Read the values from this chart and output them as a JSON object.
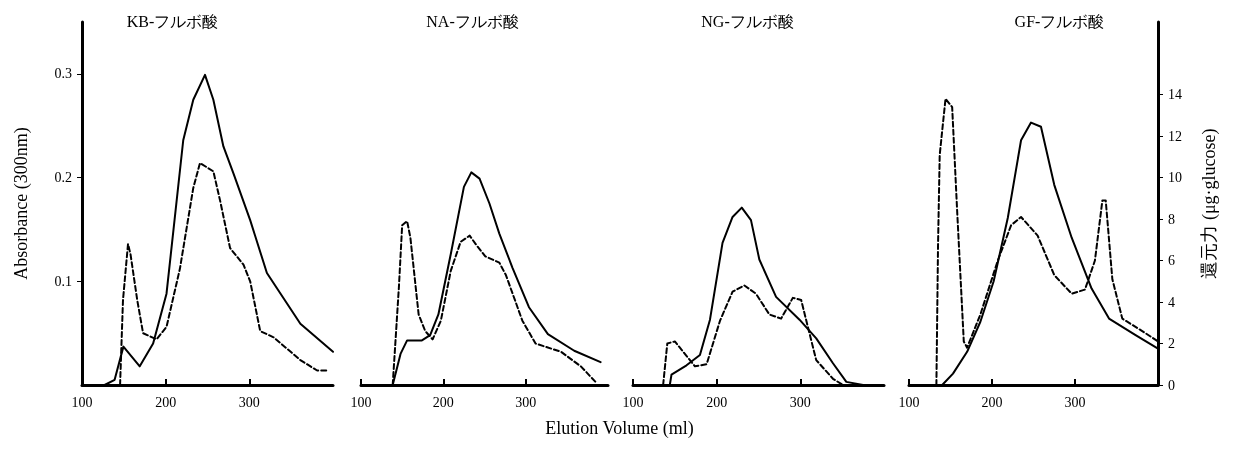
{
  "chart_data": [
    {
      "type": "line",
      "title": "KB-フルボ酸",
      "ylabel": "Absorbance (300nm)",
      "xlim": [
        100,
        400
      ],
      "xticks": [
        100,
        200,
        300
      ],
      "ylim": [
        0,
        0.35
      ],
      "yticks": [
        0.1,
        0.2,
        0.3
      ],
      "y2lim": [
        0,
        17.5
      ],
      "marker": "none",
      "series": [
        {
          "color": "#000000",
          "line_style": "solid",
          "x": [
            100,
            127,
            139,
            149.5,
            169,
            185,
            201,
            221,
            233,
            247,
            257,
            269,
            281,
            301,
            321,
            361,
            400
          ],
          "values": [
            0,
            0,
            0.005,
            0.037,
            0.018,
            0.04,
            0.088,
            0.236,
            0.275,
            0.299,
            0.275,
            0.23,
            0.204,
            0.159,
            0.108,
            0.059,
            0.032
          ]
        },
        {
          "color": "#000000",
          "line_style": "dashed",
          "axis": "y2",
          "x": [
            145.5,
            149,
            155,
            158,
            166,
            173,
            189,
            201,
            217,
            233,
            241,
            257,
            265,
            277,
            293,
            301,
            313,
            329,
            361,
            381,
            395
          ],
          "values": [
            0,
            4.1,
            6.8,
            6.3,
            4.1,
            2.5,
            2.2,
            2.8,
            5.6,
            9.5,
            10.7,
            10.3,
            8.9,
            6.6,
            5.8,
            5.0,
            2.6,
            2.3,
            1.2,
            0.7,
            0.7
          ]
        }
      ]
    },
    {
      "type": "line",
      "title": "NA-フルボ酸",
      "xlabel": "Elution Volume (ml)",
      "xlim": [
        100,
        400
      ],
      "xticks": [
        100,
        200,
        300
      ],
      "ylim": [
        0,
        0.3
      ],
      "yticks": [
        0.1,
        0.2,
        0.3
      ],
      "y2lim": [
        0,
        14
      ],
      "y2ticks": [
        0,
        2,
        4,
        6,
        8,
        10,
        12,
        14
      ],
      "tick_labels": "x",
      "marker": "none",
      "series": [
        {
          "color": "#000000",
          "line_style": "solid",
          "x": [
            138.5,
            148,
            156,
            174,
            184,
            194,
            209,
            225,
            234,
            244,
            256,
            268,
            284,
            304,
            327,
            359,
            391
          ],
          "values": [
            0,
            0.03,
            0.043,
            0.043,
            0.048,
            0.068,
            0.126,
            0.191,
            0.205,
            0.199,
            0.175,
            0.146,
            0.113,
            0.075,
            0.049,
            0.033,
            0.022
          ]
        },
        {
          "color": "#000000",
          "line_style": "dashed",
          "axis": "y2",
          "x": [
            138.5,
            146,
            150,
            156,
            160,
            170,
            178,
            187,
            197,
            209,
            221,
            232,
            241,
            251,
            268,
            276,
            296,
            312,
            343,
            367,
            386
          ],
          "values": [
            0,
            4.7,
            7.7,
            7.9,
            7.1,
            3.4,
            2.6,
            2.2,
            3.1,
            5.5,
            6.9,
            7.2,
            6.7,
            6.2,
            5.9,
            5.3,
            3.1,
            2.0,
            1.6,
            0.9,
            0.1
          ]
        }
      ]
    },
    {
      "type": "line",
      "title": "NG-フルボ酸",
      "xlim": [
        100,
        400
      ],
      "xticks": [
        100,
        200,
        300
      ],
      "ylim": [
        0,
        0.3
      ],
      "yticks": [
        0.1,
        0.2,
        0.3
      ],
      "y2lim": [
        0,
        14
      ],
      "y2ticks": [
        0,
        2,
        4,
        6,
        8,
        10,
        12,
        14
      ],
      "tick_labels": "x",
      "marker": "none",
      "series": [
        {
          "color": "#000000",
          "line_style": "solid",
          "x": [
            144,
            146,
            164,
            180,
            192,
            207,
            219,
            230,
            241,
            251,
            271,
            299,
            319,
            339,
            355,
            375
          ],
          "values": [
            0,
            0.01,
            0.019,
            0.029,
            0.063,
            0.137,
            0.162,
            0.171,
            0.159,
            0.121,
            0.085,
            0.063,
            0.045,
            0.021,
            0.003,
            0
          ]
        },
        {
          "color": "#000000",
          "line_style": "dashed",
          "axis": "y2",
          "x": [
            136,
            141,
            150,
            162,
            174,
            188,
            204,
            219,
            233,
            247,
            263,
            277,
            291,
            301,
            309,
            319,
            339,
            351
          ],
          "values": [
            0,
            2.0,
            2.1,
            1.5,
            0.9,
            1.0,
            3.1,
            4.5,
            4.8,
            4.4,
            3.4,
            3.2,
            4.2,
            4.1,
            2.8,
            1.2,
            0.3,
            0
          ]
        }
      ]
    },
    {
      "type": "line",
      "title": "GF-フルボ酸",
      "y2label": "還元力 (μg·glucose)",
      "xlim": [
        100,
        400
      ],
      "xticks": [
        100,
        200,
        300
      ],
      "ylim": [
        0,
        0.35
      ],
      "y2lim": [
        0,
        17.5
      ],
      "y2ticks": [
        0,
        2,
        4,
        6,
        8,
        10,
        12,
        14
      ],
      "marker": "none",
      "series": [
        {
          "color": "#000000",
          "line_style": "solid",
          "x": [
            140,
            153,
            170,
            186,
            202,
            219,
            235,
            247,
            259,
            275,
            296,
            320,
            341,
            373,
            400
          ],
          "values": [
            0,
            0.011,
            0.032,
            0.061,
            0.1,
            0.161,
            0.236,
            0.253,
            0.249,
            0.193,
            0.142,
            0.093,
            0.064,
            0.048,
            0.035
          ]
        },
        {
          "color": "#000000",
          "line_style": "dashed",
          "axis": "y2",
          "x": [
            133,
            135,
            137,
            144,
            152,
            158,
            166,
            170,
            186,
            207,
            223,
            235,
            255,
            275,
            296,
            312,
            324,
            333,
            337,
            345,
            357,
            381,
            400
          ],
          "values": [
            0,
            6.8,
            11.1,
            13.8,
            13.4,
            8.4,
            2.1,
            1.8,
            3.4,
            6.0,
            7.7,
            8.1,
            7.2,
            5.3,
            4.4,
            4.6,
            6.0,
            8.9,
            8.9,
            5.1,
            3.2,
            2.6,
            2.1
          ]
        }
      ]
    }
  ]
}
